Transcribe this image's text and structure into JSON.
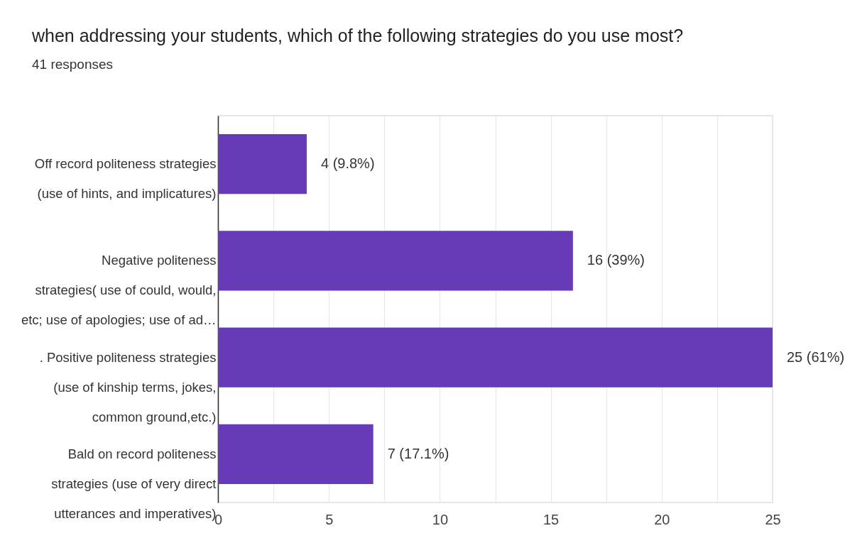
{
  "chart_data": {
    "type": "bar",
    "orientation": "horizontal",
    "title": "when addressing your students, which of the following strategies do you use most?",
    "subtitle": "41 responses",
    "categories": [
      "Off record politeness strategies\n(use of hints, and implicatures)",
      "Negative politeness\nstrategies( use of could, would,\netc; use of apologies; use of ad…",
      ". Positive politeness strategies\n(use of kinship terms, jokes,\ncommon ground,etc.)",
      "Bald on record politeness\nstrategies (use of very direct\nutterances and imperatives)"
    ],
    "values": [
      4,
      16,
      25,
      7
    ],
    "value_labels": [
      "4 (9.8%)",
      "16 (39%)",
      "25 (61%)",
      "7 (17.1%)"
    ],
    "color": "#673ab7",
    "xlim": [
      0,
      25
    ],
    "xticks": [
      0,
      {
        "value": 2.5,
        "label": null
      },
      5,
      {
        "value": 7.5,
        "label": null
      },
      10,
      {
        "value": 12.5,
        "label": null
      },
      15,
      {
        "value": 17.5,
        "label": null
      },
      20,
      {
        "value": 22.5,
        "label": null
      },
      25
    ],
    "grid": "x"
  }
}
